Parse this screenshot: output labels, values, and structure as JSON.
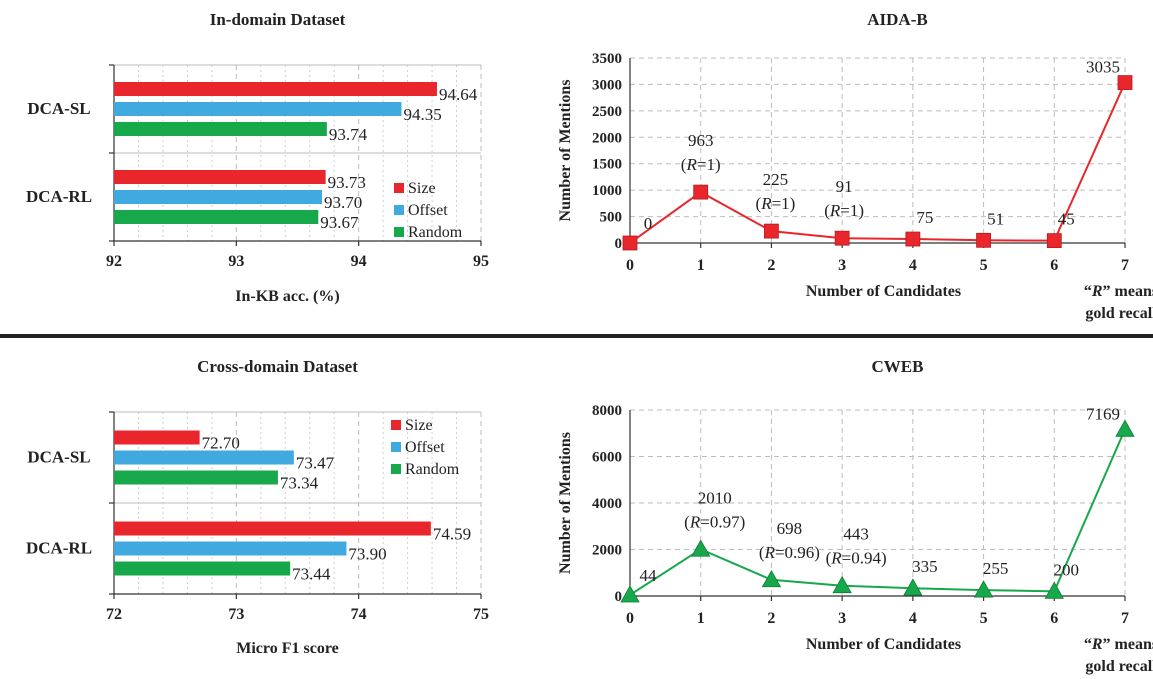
{
  "chart_data": [
    {
      "type": "bar",
      "orientation": "horizontal",
      "title": "In-domain Dataset",
      "xlabel": "In-KB acc. (%)",
      "xlim": [
        92,
        95
      ],
      "xticks": [
        "92",
        "93",
        "94",
        "95"
      ],
      "categories": [
        "DCA-SL",
        "DCA-RL"
      ],
      "series": [
        {
          "name": "Size",
          "values": [
            94.64,
            93.73
          ],
          "labels": [
            "94.64",
            "93.73"
          ]
        },
        {
          "name": "Offset",
          "values": [
            94.35,
            93.7
          ],
          "labels": [
            "94.35",
            "93.70"
          ]
        },
        {
          "name": "Random",
          "values": [
            93.74,
            93.67
          ],
          "labels": [
            "93.74",
            "93.67"
          ]
        }
      ],
      "legend": "lower-right",
      "grid": true,
      "colors": [
        "#e8262b",
        "#3fa9e0",
        "#18a84c"
      ]
    },
    {
      "type": "line",
      "title": "AIDA-B",
      "xlabel": "Number of Candidates",
      "ylabel": "Number of Mentions",
      "x": [
        0,
        1,
        2,
        3,
        4,
        5,
        6,
        7
      ],
      "xticks": [
        "0",
        "1",
        "2",
        "3",
        "4",
        "5",
        "6",
        "7"
      ],
      "y": [
        0,
        963,
        225,
        91,
        75,
        51,
        45,
        3035
      ],
      "ylim": [
        0,
        3500
      ],
      "yticks": [
        "0",
        "500",
        "1000",
        "1500",
        "2000",
        "2500",
        "3000",
        "3500"
      ],
      "point_labels": [
        "0",
        "963",
        "225",
        "91",
        "75",
        "51",
        "45",
        "3035"
      ],
      "recall_labels": [
        "",
        "(R=1)",
        "(R=1)",
        "(R=1)",
        "",
        "",
        "",
        ""
      ],
      "note": [
        "“R” means",
        "gold recall"
      ],
      "marker": "square",
      "grid": true,
      "color": "#e8262b"
    },
    {
      "type": "bar",
      "orientation": "horizontal",
      "title": "Cross-domain Dataset",
      "xlabel": "Micro F1 score",
      "xlim": [
        72,
        75
      ],
      "xticks": [
        "72",
        "73",
        "74",
        "75"
      ],
      "categories": [
        "DCA-SL",
        "DCA-RL"
      ],
      "series": [
        {
          "name": "Size",
          "values": [
            72.7,
            74.59
          ],
          "labels": [
            "72.70",
            "74.59"
          ]
        },
        {
          "name": "Offset",
          "values": [
            73.47,
            73.9
          ],
          "labels": [
            "73.47",
            "73.90"
          ]
        },
        {
          "name": "Random",
          "values": [
            73.34,
            73.44
          ],
          "labels": [
            "73.34",
            "73.44"
          ]
        }
      ],
      "legend": "upper-right",
      "grid": true,
      "colors": [
        "#e8262b",
        "#3fa9e0",
        "#18a84c"
      ]
    },
    {
      "type": "line",
      "title": "CWEB",
      "xlabel": "Number of Candidates",
      "ylabel": "Number of Mentions",
      "x": [
        0,
        1,
        2,
        3,
        4,
        5,
        6,
        7
      ],
      "xticks": [
        "0",
        "1",
        "2",
        "3",
        "4",
        "5",
        "6",
        "7"
      ],
      "y": [
        44,
        2010,
        698,
        443,
        335,
        255,
        200,
        7169
      ],
      "ylim": [
        0,
        8000
      ],
      "yticks": [
        "0",
        "2000",
        "4000",
        "6000",
        "8000"
      ],
      "point_labels": [
        "44",
        "2010",
        "698",
        "443",
        "335",
        "255",
        "200",
        "7169"
      ],
      "recall_labels": [
        "",
        "(R=0.97)",
        "(R=0.96)",
        "(R=0.94)",
        "",
        "",
        "",
        ""
      ],
      "note": [
        "“R” means",
        "gold recall"
      ],
      "marker": "triangle",
      "grid": true,
      "color": "#18a84c"
    }
  ]
}
